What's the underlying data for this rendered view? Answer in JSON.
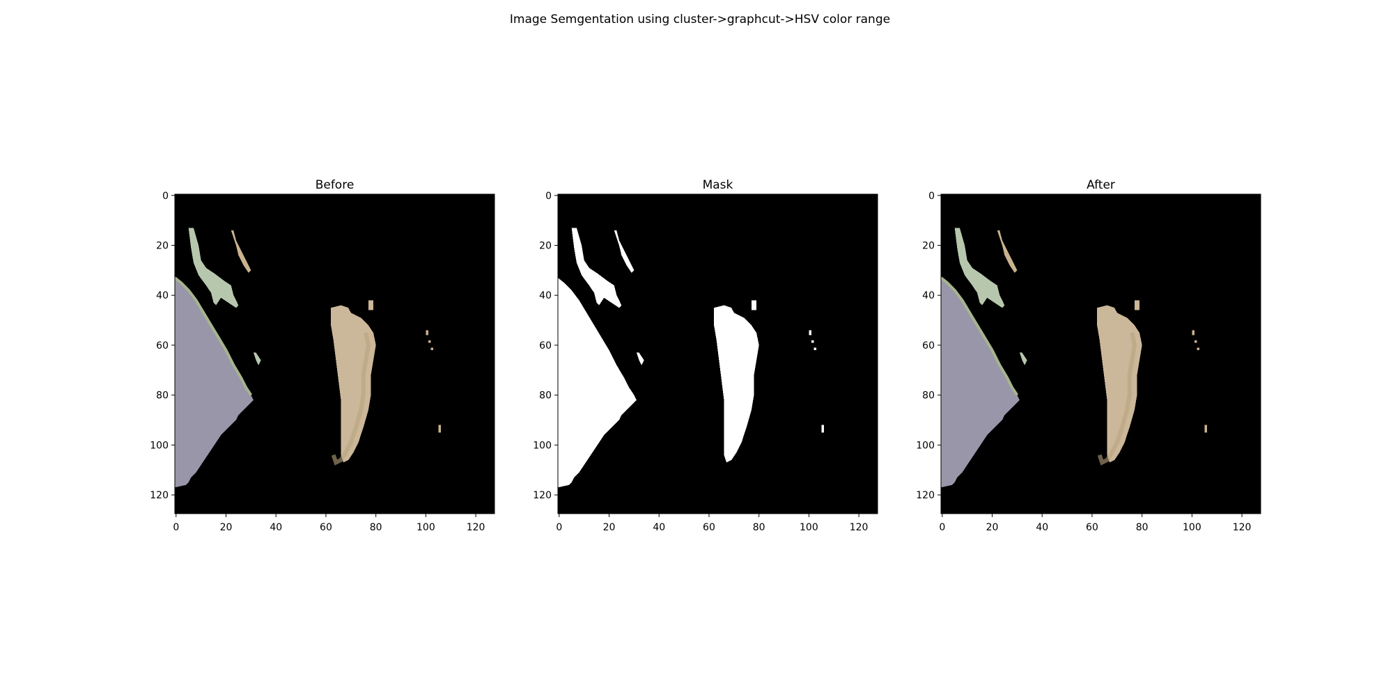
{
  "figure": {
    "suptitle": "Image Semgentation using cluster->graphcut->HSV color range"
  },
  "colors": {
    "background": "#000000",
    "mask_foreground": "#ffffff",
    "lavender_region": "#9896a8",
    "lavender_region_shade": "#8e8ca0",
    "lavender_region_edge": "#a7b48e",
    "tan_region": "#cbb799",
    "tan_region_shade": "#b9a47e",
    "pale_green_region": "#b7c7ad",
    "small_speck": "#c9b28e"
  },
  "chart_data": [
    {
      "type": "image",
      "panel": "before",
      "title": "Before",
      "xlabel": "",
      "ylabel": "",
      "xticks": [
        0,
        20,
        40,
        60,
        80,
        100,
        120
      ],
      "yticks": [
        0,
        20,
        40,
        60,
        80,
        100,
        120
      ],
      "xlim": [
        -0.5,
        127.5
      ],
      "ylim": [
        127.5,
        -0.5
      ],
      "grid": false,
      "rendering": "color"
    },
    {
      "type": "image",
      "panel": "mask",
      "title": "Mask",
      "xlabel": "",
      "ylabel": "",
      "xticks": [
        0,
        20,
        40,
        60,
        80,
        100,
        120
      ],
      "yticks": [
        0,
        20,
        40,
        60,
        80,
        100,
        120
      ],
      "xlim": [
        -0.5,
        127.5
      ],
      "ylim": [
        127.5,
        -0.5
      ],
      "grid": false,
      "rendering": "binary"
    },
    {
      "type": "image",
      "panel": "after",
      "title": "After",
      "xlabel": "",
      "ylabel": "",
      "xticks": [
        0,
        20,
        40,
        60,
        80,
        100,
        120
      ],
      "yticks": [
        0,
        20,
        40,
        60,
        80,
        100,
        120
      ],
      "xlim": [
        -0.5,
        127.5
      ],
      "ylim": [
        127.5,
        -0.5
      ],
      "grid": false,
      "rendering": "color"
    }
  ],
  "regions": [
    {
      "name": "lavender-region",
      "fill_key": "lavender_region",
      "polygon": [
        [
          -0.5,
          33
        ],
        [
          2,
          35
        ],
        [
          5,
          38
        ],
        [
          8,
          42
        ],
        [
          11,
          47
        ],
        [
          14,
          52
        ],
        [
          17,
          57
        ],
        [
          20,
          62
        ],
        [
          23,
          68
        ],
        [
          26,
          73
        ],
        [
          28,
          77
        ],
        [
          30,
          80
        ],
        [
          31,
          82
        ],
        [
          29,
          84
        ],
        [
          27,
          86
        ],
        [
          25,
          88
        ],
        [
          24,
          90
        ],
        [
          22,
          92
        ],
        [
          20,
          94
        ],
        [
          18,
          96
        ],
        [
          16,
          99
        ],
        [
          14,
          102
        ],
        [
          12,
          105
        ],
        [
          10,
          108
        ],
        [
          8,
          111
        ],
        [
          6,
          113
        ],
        [
          5,
          115
        ],
        [
          4,
          116
        ],
        [
          -0.5,
          117
        ]
      ]
    },
    {
      "name": "tan-region",
      "fill_key": "tan_region",
      "polygon": [
        [
          62,
          45
        ],
        [
          66,
          44
        ],
        [
          69,
          45
        ],
        [
          70,
          47
        ],
        [
          74,
          49
        ],
        [
          77,
          52
        ],
        [
          79,
          55
        ],
        [
          80,
          60
        ],
        [
          79,
          66
        ],
        [
          78,
          72
        ],
        [
          78,
          80
        ],
        [
          77,
          86
        ],
        [
          75,
          93
        ],
        [
          73,
          99
        ],
        [
          71,
          103
        ],
        [
          69,
          106
        ],
        [
          67,
          107
        ],
        [
          66,
          104
        ],
        [
          66,
          98
        ],
        [
          66,
          90
        ],
        [
          66,
          82
        ],
        [
          65,
          74
        ],
        [
          64,
          66
        ],
        [
          63,
          58
        ],
        [
          62,
          52
        ]
      ]
    },
    {
      "name": "tan-speck-a",
      "fill_key": "tan_region",
      "polygon": [
        [
          77,
          42
        ],
        [
          79,
          42
        ],
        [
          79,
          46
        ],
        [
          77,
          46
        ]
      ]
    },
    {
      "name": "pale-green-region",
      "fill_key": "pale_green_region",
      "polygon": [
        [
          5,
          13
        ],
        [
          7,
          13
        ],
        [
          9,
          20
        ],
        [
          10,
          26
        ],
        [
          12,
          29
        ],
        [
          15,
          31
        ],
        [
          19,
          34
        ],
        [
          22,
          36
        ],
        [
          23,
          40
        ],
        [
          25,
          44
        ],
        [
          24,
          45
        ],
        [
          21,
          43
        ],
        [
          18,
          41
        ],
        [
          16,
          44
        ],
        [
          15,
          43
        ],
        [
          14,
          39
        ],
        [
          12,
          36
        ],
        [
          9,
          32
        ],
        [
          7,
          27
        ],
        [
          6,
          21
        ]
      ]
    },
    {
      "name": "tan-sliver",
      "fill_key": "small_speck",
      "polygon": [
        [
          22,
          14
        ],
        [
          23,
          14
        ],
        [
          24,
          18
        ],
        [
          26,
          22
        ],
        [
          28,
          26
        ],
        [
          30,
          30
        ],
        [
          29,
          31
        ],
        [
          27,
          28
        ],
        [
          25,
          24
        ],
        [
          24,
          20
        ],
        [
          23,
          17
        ]
      ]
    },
    {
      "name": "pale-green-speck",
      "fill_key": "pale_green_region",
      "polygon": [
        [
          31,
          63
        ],
        [
          32,
          63
        ],
        [
          34,
          66
        ],
        [
          33,
          68
        ],
        [
          32,
          66
        ]
      ]
    },
    {
      "name": "speck-right-a",
      "fill_key": "small_speck",
      "polygon": [
        [
          100,
          54
        ],
        [
          101,
          54
        ],
        [
          101,
          56
        ],
        [
          100,
          56
        ]
      ]
    },
    {
      "name": "speck-right-b",
      "fill_key": "small_speck",
      "polygon": [
        [
          101,
          58
        ],
        [
          102,
          58
        ],
        [
          102,
          59
        ],
        [
          101,
          59
        ]
      ]
    },
    {
      "name": "speck-right-c",
      "fill_key": "small_speck",
      "polygon": [
        [
          102,
          61
        ],
        [
          103,
          61
        ],
        [
          103,
          62
        ],
        [
          102,
          62
        ]
      ]
    },
    {
      "name": "speck-right-d",
      "fill_key": "small_speck",
      "polygon": [
        [
          105,
          92
        ],
        [
          106,
          92
        ],
        [
          106,
          95
        ],
        [
          105,
          95
        ]
      ]
    }
  ]
}
